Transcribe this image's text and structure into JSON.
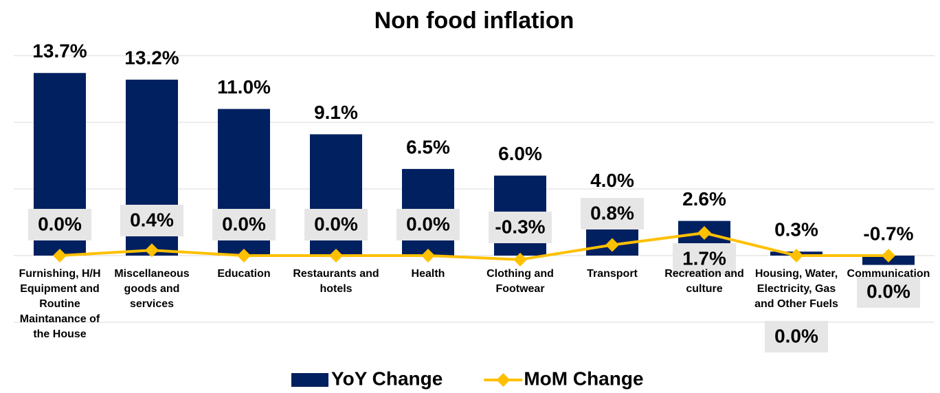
{
  "chart_data": {
    "type": "bar",
    "title": "Non food inflation",
    "categories": [
      "Furnishing, H/H Equipment and Routine Maintanance of the House",
      "Miscellaneous goods and services",
      "Education",
      "Restaurants and hotels",
      "Health",
      "Clothing and Footwear",
      "Transport",
      "Recreation and culture",
      "Housing, Water, Electricity, Gas and Other Fuels",
      "Communication"
    ],
    "series": [
      {
        "name": "YoY Change",
        "type": "bar",
        "color": "#002060",
        "values": [
          13.7,
          13.2,
          11.0,
          9.1,
          6.5,
          6.0,
          4.0,
          2.6,
          0.3,
          -0.7
        ],
        "value_labels": [
          "13.7%",
          "13.2%",
          "11.0%",
          "9.1%",
          "6.5%",
          "6.0%",
          "4.0%",
          "2.6%",
          "0.3%",
          "-0.7%"
        ]
      },
      {
        "name": "MoM Change",
        "type": "line",
        "color": "#FFC000",
        "values": [
          0.0,
          0.4,
          0.0,
          0.0,
          0.0,
          -0.3,
          0.8,
          1.7,
          0.0,
          0.0
        ],
        "value_labels": [
          "0.0%",
          "0.4%",
          "0.0%",
          "0.0%",
          "0.0%",
          "-0.3%",
          "0.8%",
          "1.7%",
          "0.0%",
          "0.0%"
        ]
      }
    ],
    "ylim": [
      -5,
      15
    ],
    "yticks": [
      -5,
      0,
      5,
      10,
      15
    ],
    "grid": true,
    "legend": "bottom"
  }
}
